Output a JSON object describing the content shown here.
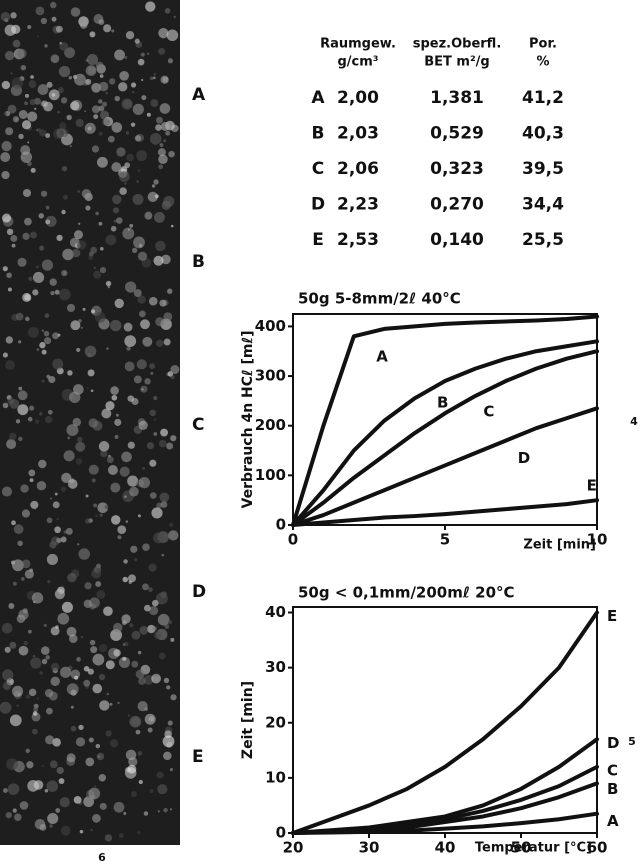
{
  "photo": {
    "labels": [
      "A",
      "B",
      "C",
      "D",
      "E"
    ],
    "figure_number": "6"
  },
  "side_numbers": [
    "4",
    "5"
  ],
  "table": {
    "header": [
      [
        "Raumgew.",
        "g/cm³"
      ],
      [
        "spez.Oberfl.",
        "BET m²/g"
      ],
      [
        "Por.",
        "%"
      ]
    ],
    "rows": [
      [
        "A",
        "2,00",
        "1,381",
        "41,2"
      ],
      [
        "B",
        "2,03",
        "0,529",
        "40,3"
      ],
      [
        "C",
        "2,06",
        "0,323",
        "39,5"
      ],
      [
        "D",
        "2,23",
        "0,270",
        "34,4"
      ],
      [
        "E",
        "2,53",
        "0,140",
        "25,5"
      ]
    ]
  },
  "chart_data": [
    {
      "type": "line",
      "title": "50g 5-8mm/2ℓ 40°C",
      "x_label": "Zeit [min]",
      "y_label": "Verbrauch 4n HCℓ [mℓ]",
      "x": [
        0,
        1,
        2,
        3,
        4,
        5,
        6,
        7,
        8,
        9,
        10
      ],
      "xlim": [
        0,
        10
      ],
      "ylim": [
        0,
        425
      ],
      "xticks": [
        0,
        5,
        10
      ],
      "yticks": [
        0,
        100,
        200,
        300,
        400
      ],
      "series": [
        {
          "name": "A",
          "color": "#111111",
          "values": [
            0,
            200,
            380,
            395,
            400,
            405,
            408,
            410,
            412,
            415,
            420
          ]
        },
        {
          "name": "B",
          "color": "#111111",
          "values": [
            0,
            70,
            150,
            210,
            255,
            290,
            315,
            335,
            350,
            360,
            370
          ]
        },
        {
          "name": "C",
          "color": "#111111",
          "values": [
            0,
            45,
            95,
            140,
            185,
            225,
            260,
            290,
            315,
            335,
            350
          ]
        },
        {
          "name": "D",
          "color": "#111111",
          "values": [
            0,
            20,
            45,
            70,
            95,
            120,
            145,
            170,
            195,
            215,
            235
          ]
        },
        {
          "name": "E",
          "color": "#111111",
          "values": [
            0,
            5,
            10,
            15,
            18,
            22,
            27,
            32,
            37,
            42,
            50
          ]
        }
      ]
    },
    {
      "type": "line",
      "title": "50g < 0,1mm/200mℓ 20°C",
      "x_label": "Temperatur [°C]",
      "y_label": "Zeit [min]",
      "x": [
        20,
        25,
        30,
        35,
        40,
        45,
        50,
        55,
        60
      ],
      "xlim": [
        20,
        60
      ],
      "ylim": [
        0,
        41
      ],
      "xticks": [
        20,
        30,
        40,
        50,
        60
      ],
      "yticks": [
        0,
        10,
        20,
        30,
        40
      ],
      "series": [
        {
          "name": "E",
          "color": "#111111",
          "values": [
            0,
            2.5,
            5,
            8,
            12,
            17,
            23,
            30,
            40
          ]
        },
        {
          "name": "D",
          "color": "#111111",
          "values": [
            0,
            0.5,
            1,
            2,
            3,
            5,
            8,
            12,
            17
          ]
        },
        {
          "name": "C",
          "color": "#111111",
          "values": [
            0,
            0.3,
            0.7,
            1.3,
            2.5,
            4,
            6,
            8.5,
            12
          ]
        },
        {
          "name": "B",
          "color": "#111111",
          "values": [
            0,
            0.2,
            0.5,
            1,
            2,
            3,
            4.5,
            6.5,
            9
          ]
        },
        {
          "name": "A",
          "color": "#111111",
          "values": [
            0,
            0.1,
            0.2,
            0.4,
            0.8,
            1.2,
            1.8,
            2.5,
            3.5
          ]
        }
      ]
    }
  ]
}
